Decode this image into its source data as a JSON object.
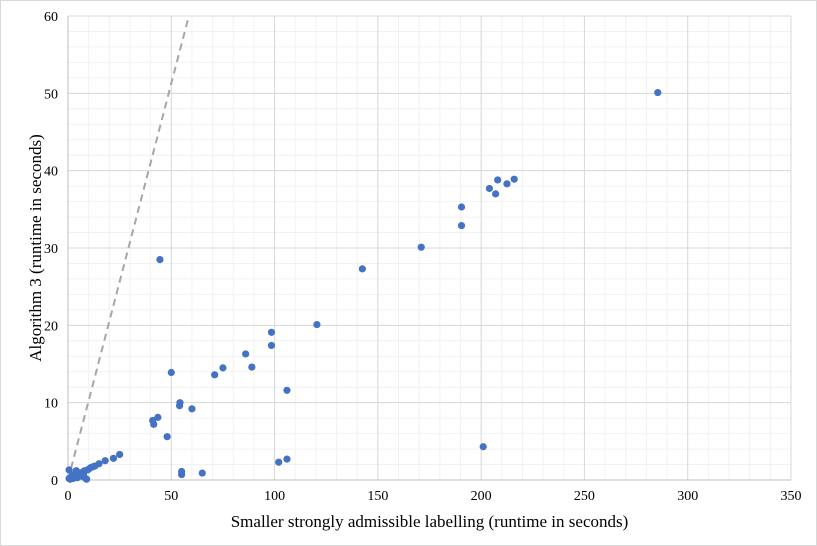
{
  "chart_data": {
    "type": "scatter",
    "title": "",
    "xlabel": "Smaller strongly admissible labelling (runtime in seconds)",
    "ylabel": "Algorithm 3 (runtime in seconds)",
    "xlim": [
      0,
      350
    ],
    "ylim": [
      0,
      60
    ],
    "x_ticks": [
      0,
      50,
      100,
      150,
      200,
      250,
      300,
      350
    ],
    "y_ticks": [
      0,
      10,
      20,
      30,
      40,
      50,
      60
    ],
    "grid": true,
    "legend": "none",
    "reference_line": {
      "style": "dashed",
      "color": "#a6a6a6",
      "from": [
        0,
        0
      ],
      "to": [
        58.5,
        60
      ]
    },
    "series": [
      {
        "color": "#4472c4",
        "points": [
          [
            0.5,
            1.3
          ],
          [
            0.5,
            0.2
          ],
          [
            1,
            0.1
          ],
          [
            1.5,
            0.3
          ],
          [
            2,
            0.5
          ],
          [
            2.5,
            0.2
          ],
          [
            3,
            0.7
          ],
          [
            3.5,
            0.4
          ],
          [
            4,
            1.2
          ],
          [
            4.5,
            0.3
          ],
          [
            5,
            0.8
          ],
          [
            5.5,
            0.6
          ],
          [
            6,
            0.9
          ],
          [
            6.5,
            0.5
          ],
          [
            7,
            1.0
          ],
          [
            7.5,
            0.8
          ],
          [
            8,
            1.2
          ],
          [
            8.5,
            0.2
          ],
          [
            9,
            0.1
          ],
          [
            9.5,
            1.3
          ],
          [
            10,
            1.4
          ],
          [
            11,
            1.6
          ],
          [
            12,
            1.7
          ],
          [
            13,
            1.8
          ],
          [
            15,
            2.1
          ],
          [
            18,
            2.5
          ],
          [
            22,
            2.8
          ],
          [
            25,
            3.3
          ],
          [
            41,
            7.7
          ],
          [
            41.5,
            7.2
          ],
          [
            43.5,
            8.1
          ],
          [
            44.5,
            28.5
          ],
          [
            48,
            5.6
          ],
          [
            50,
            13.9
          ],
          [
            54,
            9.6
          ],
          [
            54.2,
            10.0
          ],
          [
            55,
            1.1
          ],
          [
            55,
            0.7
          ],
          [
            60,
            9.2
          ],
          [
            65,
            0.9
          ],
          [
            71,
            13.6
          ],
          [
            75,
            14.5
          ],
          [
            86,
            16.3
          ],
          [
            89,
            14.6
          ],
          [
            98.5,
            19.1
          ],
          [
            98.5,
            17.4
          ],
          [
            102,
            2.3
          ],
          [
            106,
            2.7
          ],
          [
            106,
            11.6
          ],
          [
            120.5,
            20.1
          ],
          [
            142.5,
            27.3
          ],
          [
            171,
            30.1
          ],
          [
            190.5,
            35.3
          ],
          [
            190.5,
            32.9
          ],
          [
            201,
            4.3
          ],
          [
            204,
            37.7
          ],
          [
            207,
            37.0
          ],
          [
            208,
            38.8
          ],
          [
            212.5,
            38.3
          ],
          [
            216,
            38.9
          ],
          [
            285.5,
            50.1
          ]
        ]
      }
    ]
  }
}
